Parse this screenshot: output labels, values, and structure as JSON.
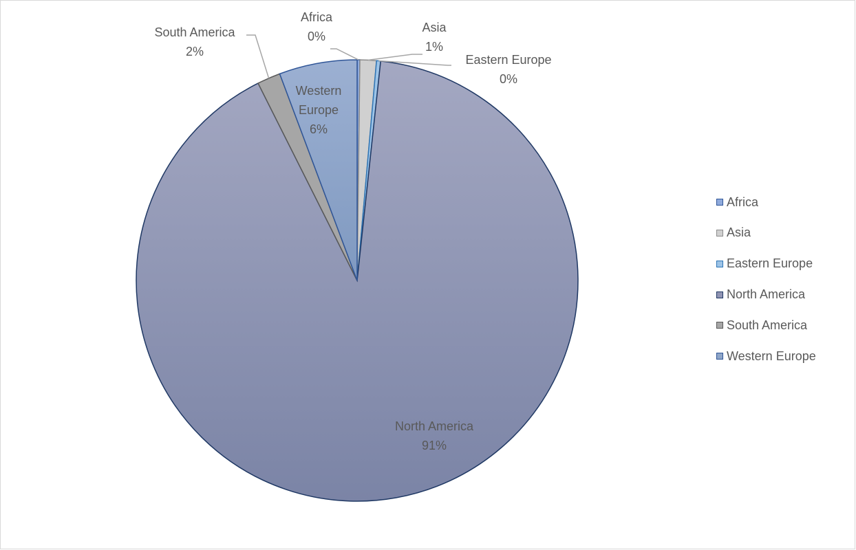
{
  "chart_data": {
    "type": "pie",
    "title": "",
    "categories": [
      "Africa",
      "Asia",
      "Eastern Europe",
      "North America",
      "South America",
      "Western Europe"
    ],
    "values": [
      0.2,
      1.2,
      0.3,
      90.9,
      1.7,
      5.7
    ],
    "data_labels": [
      {
        "category": "Africa",
        "label": "0%"
      },
      {
        "category": "Asia",
        "label": "1%"
      },
      {
        "category": "Eastern Europe",
        "label": "0%"
      },
      {
        "category": "North America",
        "label": "91%"
      },
      {
        "category": "South America",
        "label": "2%"
      },
      {
        "category": "Western Europe",
        "label": "6%"
      }
    ],
    "colors": [
      "#8faadc",
      "#d0d0d0",
      "#9dc3e6",
      "#9094b3",
      "#a6a6a6",
      "#8ea5c8"
    ],
    "legend_position": "right",
    "start_angle": "top, clockwise"
  }
}
